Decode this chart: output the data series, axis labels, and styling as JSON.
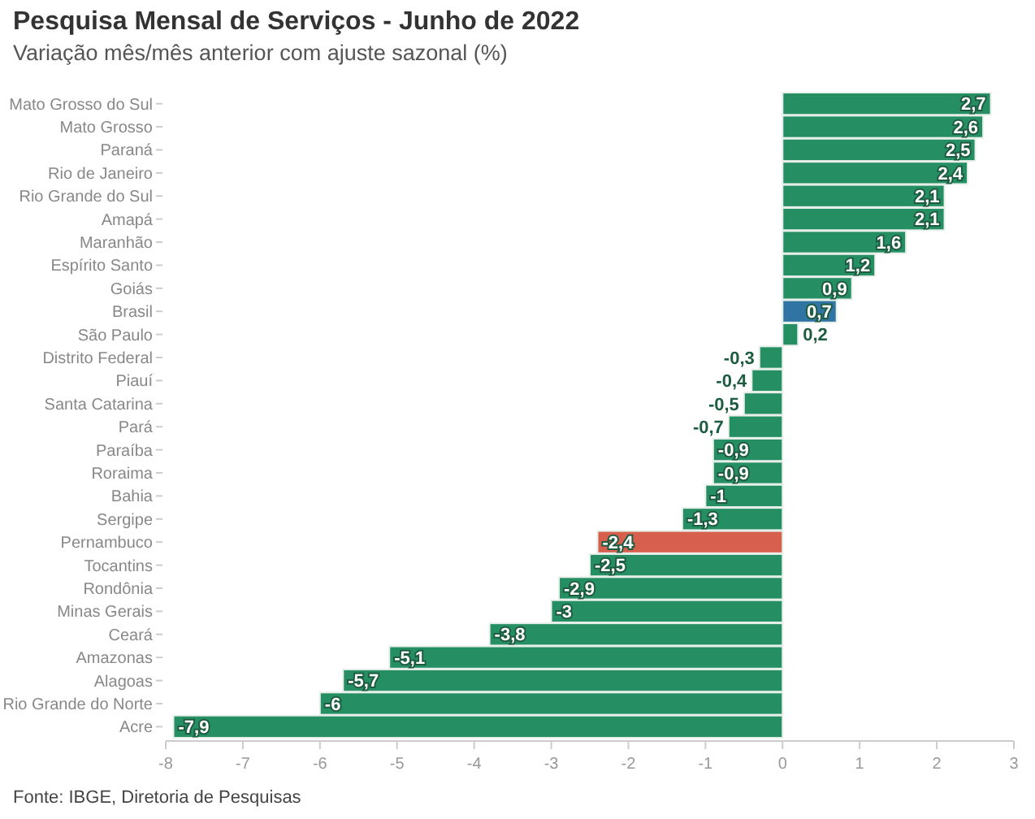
{
  "chart_data": {
    "type": "bar",
    "orientation": "horizontal",
    "title": "Pesquisa Mensal de Serviços - Junho de 2022",
    "subtitle": "Variação mês/mês anterior com ajuste sazonal (%)",
    "categories": [
      "Mato Grosso do Sul",
      "Mato Grosso",
      "Paraná",
      "Rio de Janeiro",
      "Rio Grande do Sul",
      "Amapá",
      "Maranhão",
      "Espírito Santo",
      "Goiás",
      "Brasil",
      "São Paulo",
      "Distrito Federal",
      "Piauí",
      "Santa Catarina",
      "Pará",
      "Paraíba",
      "Roraima",
      "Bahia",
      "Sergipe",
      "Pernambuco",
      "Tocantins",
      "Rondônia",
      "Minas Gerais",
      "Ceará",
      "Amazonas",
      "Alagoas",
      "Rio Grande do Norte",
      "Acre"
    ],
    "values": [
      2.7,
      2.6,
      2.5,
      2.4,
      2.1,
      2.1,
      1.6,
      1.2,
      0.9,
      0.7,
      0.2,
      -0.3,
      -0.4,
      -0.5,
      -0.7,
      -0.9,
      -0.9,
      -1,
      -1.3,
      -2.4,
      -2.5,
      -2.9,
      -3,
      -3.8,
      -5.1,
      -5.7,
      -6,
      -7.9
    ],
    "value_labels": [
      "2,7",
      "2,6",
      "2,5",
      "2,4",
      "2,1",
      "2,1",
      "1,6",
      "1,2",
      "0,9",
      "0,7",
      "0,2",
      "-0,3",
      "-0,4",
      "-0,5",
      "-0,7",
      "-0,9",
      "-0,9",
      "-1",
      "-1,3",
      "-2,4",
      "-2,5",
      "-2,9",
      "-3",
      "-3,8",
      "-5,1",
      "-5,7",
      "-6",
      "-7,9"
    ],
    "colors": [
      "#268e63",
      "#268e63",
      "#268e63",
      "#268e63",
      "#268e63",
      "#268e63",
      "#268e63",
      "#268e63",
      "#268e63",
      "#2f74a2",
      "#268e63",
      "#268e63",
      "#268e63",
      "#268e63",
      "#268e63",
      "#268e63",
      "#268e63",
      "#268e63",
      "#268e63",
      "#d6604d",
      "#268e63",
      "#268e63",
      "#268e63",
      "#268e63",
      "#268e63",
      "#268e63",
      "#268e63",
      "#268e63"
    ],
    "xlim": [
      -8,
      3
    ],
    "xticks": [
      -8,
      -7,
      -6,
      -5,
      -4,
      -3,
      -2,
      -1,
      0,
      1,
      2,
      3
    ],
    "grid": false,
    "annotations": [
      "Fonte: IBGE, Diretoria de Pesquisas"
    ]
  }
}
